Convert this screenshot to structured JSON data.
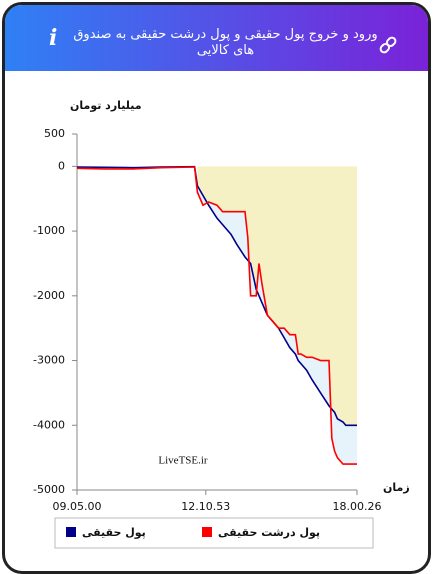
{
  "header": {
    "title": "ورود و خروج پول حقیقی و پول درشت حقیقی به صندوق های کالایی",
    "info_icon": "i"
  },
  "chart_data": {
    "type": "line",
    "y_label": "میلیارد تومان",
    "x_label": "زمان",
    "watermark": "LiveTSE.ir",
    "x": [
      0,
      10,
      20,
      30,
      42,
      43,
      45,
      47,
      50,
      52,
      55,
      57,
      60,
      61,
      62,
      64,
      65,
      66,
      68,
      70,
      72,
      74,
      76,
      78,
      79,
      80,
      82,
      84,
      87,
      90,
      91,
      92,
      93,
      95,
      96,
      100
    ],
    "series": [
      {
        "name": "پول حقیقی",
        "color": "#00008b",
        "values": [
          -10,
          -15,
          -20,
          -10,
          -5,
          -300,
          -450,
          -600,
          -800,
          -900,
          -1050,
          -1200,
          -1400,
          -1450,
          -1500,
          -1900,
          -2000,
          -2100,
          -2300,
          -2400,
          -2500,
          -2650,
          -2800,
          -2900,
          -3000,
          -3050,
          -3150,
          -3300,
          -3500,
          -3700,
          -3750,
          -3800,
          -3900,
          -3950,
          -4000,
          -4000
        ]
      },
      {
        "name": "پول درشت حقیقی",
        "color": "#ff0000",
        "values": [
          -30,
          -40,
          -40,
          -20,
          -10,
          -400,
          -600,
          -550,
          -600,
          -700,
          -700,
          -700,
          -700,
          -1100,
          -2000,
          -2000,
          -1500,
          -1800,
          -2300,
          -2400,
          -2500,
          -2500,
          -2600,
          -2600,
          -2900,
          -2900,
          -2950,
          -2950,
          -3000,
          -3000,
          -4200,
          -4400,
          -4500,
          -4600,
          -4600,
          -4600
        ]
      }
    ],
    "xlim": [
      0,
      100
    ],
    "xticks": [
      {
        "value": 0,
        "label": "09.05.00"
      },
      {
        "value": 46,
        "label": "12.10.53"
      },
      {
        "value": 100,
        "label": "18.00.26"
      }
    ],
    "ylim": [
      -5000,
      500
    ],
    "yticks": [
      500,
      0,
      -1000,
      -2000,
      -3000,
      -4000,
      -5000
    ],
    "legend": "bottom"
  }
}
